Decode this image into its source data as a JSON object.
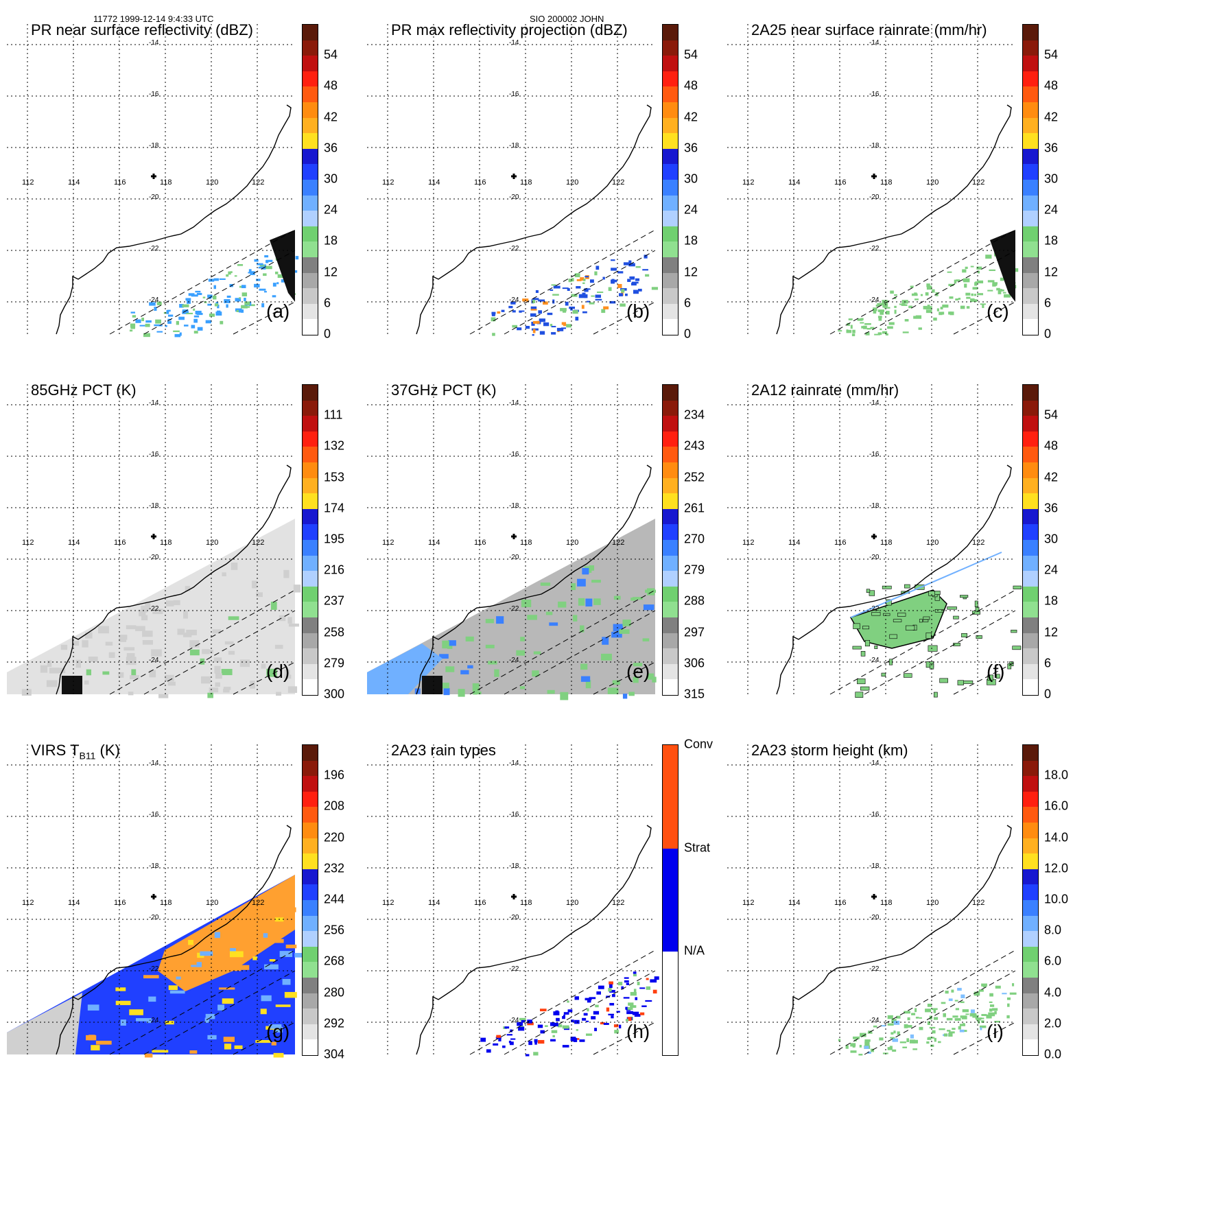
{
  "header": {
    "left": "11772 1999-12-14 9:4:33 UTC",
    "center": "SIO 200002 JOHN"
  },
  "map": {
    "lon_labels": [
      "112",
      "114",
      "116",
      "118",
      "120",
      "122"
    ],
    "lat_labels": [
      "-14",
      "-16",
      "-18",
      "-20",
      "-22",
      "-24"
    ],
    "storm_center_marker": "plus-icon"
  },
  "panels": [
    {
      "id": "a",
      "title": "PR near surface reflectivity (dBZ)",
      "label": "(a)",
      "ticks": [
        "54",
        "48",
        "42",
        "36",
        "30",
        "24",
        "18",
        "12",
        "6",
        "0"
      ],
      "field": "swath-rain",
      "colors": {
        "main": "#3aa0ff",
        "accent": "#80d080"
      }
    },
    {
      "id": "b",
      "title": "PR max reflectivity projection (dBZ)",
      "label": "(b)",
      "ticks": [
        "54",
        "48",
        "42",
        "36",
        "30",
        "24",
        "18",
        "12",
        "6",
        "0"
      ],
      "field": "swath-rain",
      "colors": {
        "main": "#2050e0",
        "accent": "#ff9020"
      }
    },
    {
      "id": "c",
      "title": "2A25 near surface rainrate (mm/hr)",
      "label": "(c)",
      "ticks": [
        "54",
        "48",
        "42",
        "36",
        "30",
        "24",
        "18",
        "12",
        "6",
        "0"
      ],
      "field": "swath-rain",
      "colors": {
        "main": "#80d080",
        "accent": "#80d080"
      }
    },
    {
      "id": "d",
      "title": "85GHz PCT (K)",
      "label": "(d)",
      "ticks": [
        "111",
        "132",
        "153",
        "174",
        "195",
        "216",
        "237",
        "258",
        "279",
        "300"
      ],
      "field": "tmi-gray",
      "colors": {
        "main": "#e0e0e0",
        "accent": "#80d080"
      }
    },
    {
      "id": "e",
      "title": "37GHz PCT (K)",
      "label": "(e)",
      "ticks": [
        "234",
        "243",
        "252",
        "261",
        "270",
        "279",
        "288",
        "297",
        "306",
        "315"
      ],
      "field": "tmi-green",
      "colors": {
        "main": "#c8c8c8",
        "accent": "#80d080"
      }
    },
    {
      "id": "f",
      "title": "2A12 rainrate (mm/hr)",
      "label": "(f)",
      "ticks": [
        "54",
        "48",
        "42",
        "36",
        "30",
        "24",
        "18",
        "12",
        "6",
        "0"
      ],
      "field": "tmi-rain",
      "colors": {
        "main": "#80d080",
        "accent": "#80d080"
      }
    },
    {
      "id": "g",
      "title_main": "VIRS T",
      "title_sub": "B11",
      "title_unit": " (K)",
      "label": "(g)",
      "ticks": [
        "196",
        "208",
        "220",
        "232",
        "244",
        "256",
        "268",
        "280",
        "292",
        "304"
      ],
      "field": "virs",
      "colors": {
        "main": "#2040ff",
        "accent": "#ffa030"
      }
    },
    {
      "id": "h",
      "title": "2A23 rain types",
      "label": "(h)",
      "ticks": [
        "Conv",
        "Strat",
        "N/A"
      ],
      "field": "swath-type",
      "colors": {
        "main": "#0000ee",
        "accent": "#ff4010"
      }
    },
    {
      "id": "i",
      "title": "2A23 storm height (km)",
      "label": "(i)",
      "ticks": [
        "18.0",
        "16.0",
        "14.0",
        "12.0",
        "10.0",
        "8.0",
        "6.0",
        "4.0",
        "2.0",
        "0.0"
      ],
      "field": "swath-height",
      "colors": {
        "main": "#80d080",
        "accent": "#80c0ff"
      }
    }
  ],
  "colorbar_standard": [
    "#5a1a0a",
    "#8a1a0a",
    "#c01010",
    "#ff2010",
    "#ff5a10",
    "#ff8c10",
    "#ffb020",
    "#ffe020",
    "#1818d0",
    "#2040ff",
    "#3a80ff",
    "#70b0ff",
    "#b0d0ff",
    "#70d070",
    "#90e090",
    "#808080",
    "#a8a8a8",
    "#c8c8c8",
    "#e4e4e4",
    "#ffffff"
  ],
  "colorbar_types": [
    "#ff5010",
    "#0000ee",
    "#ffffff"
  ]
}
